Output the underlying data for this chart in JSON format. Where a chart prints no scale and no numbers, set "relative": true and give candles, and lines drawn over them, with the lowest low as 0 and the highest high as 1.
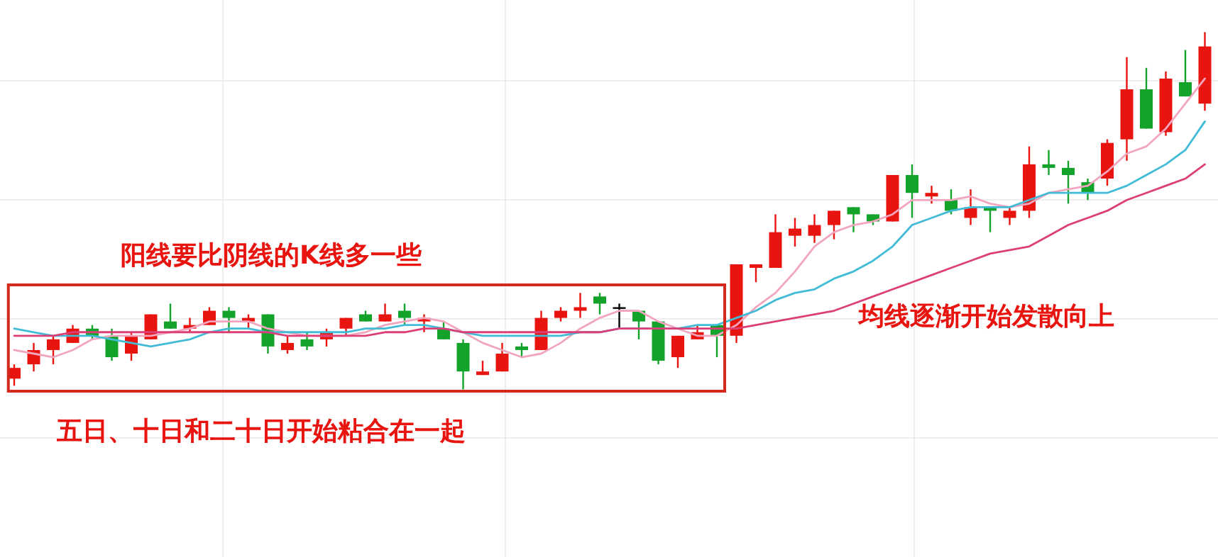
{
  "chart_data": {
    "type": "candlestick",
    "relative": true,
    "grid": true,
    "categories": [
      null,
      null,
      null,
      null,
      null,
      null,
      null,
      null,
      null,
      null,
      null,
      null,
      null,
      null,
      null,
      null,
      null,
      null,
      null,
      null,
      null,
      null,
      null,
      null,
      null,
      null,
      null,
      null,
      null,
      null,
      null,
      null,
      null,
      null,
      null,
      null,
      null,
      null,
      null,
      null,
      null,
      null,
      null,
      null,
      null,
      null,
      null,
      null,
      null,
      null,
      null,
      null,
      null,
      null,
      null,
      null,
      null,
      null,
      null,
      null,
      null,
      null
    ],
    "ohlc": [
      [
        0.03,
        0.07,
        0.01,
        0.06
      ],
      [
        0.07,
        0.13,
        0.05,
        0.11
      ],
      [
        0.11,
        0.15,
        0.07,
        0.14
      ],
      [
        0.13,
        0.18,
        0.13,
        0.17
      ],
      [
        0.17,
        0.18,
        0.14,
        0.15
      ],
      [
        0.15,
        0.17,
        0.08,
        0.09
      ],
      [
        0.1,
        0.16,
        0.08,
        0.15
      ],
      [
        0.14,
        0.21,
        0.14,
        0.21
      ],
      [
        0.19,
        0.24,
        0.17,
        0.17
      ],
      [
        0.17,
        0.2,
        0.16,
        0.18
      ],
      [
        0.18,
        0.23,
        0.18,
        0.22
      ],
      [
        0.22,
        0.23,
        0.16,
        0.2
      ],
      [
        0.19,
        0.21,
        0.17,
        0.2
      ],
      [
        0.21,
        0.21,
        0.1,
        0.12
      ],
      [
        0.11,
        0.15,
        0.1,
        0.13
      ],
      [
        0.14,
        0.16,
        0.11,
        0.12
      ],
      [
        0.14,
        0.17,
        0.12,
        0.16
      ],
      [
        0.17,
        0.2,
        0.15,
        0.2
      ],
      [
        0.21,
        0.22,
        0.19,
        0.19
      ],
      [
        0.19,
        0.24,
        0.19,
        0.21
      ],
      [
        0.22,
        0.24,
        0.18,
        0.2
      ],
      [
        0.19,
        0.21,
        0.16,
        0.2
      ],
      [
        0.17,
        0.19,
        0.14,
        0.14
      ],
      [
        0.13,
        0.14,
        0,
        0.05
      ],
      [
        0.04,
        0.08,
        0.04,
        0.05
      ],
      [
        0.05,
        0.13,
        0.05,
        0.1
      ],
      [
        0.12,
        0.13,
        0.09,
        0.11
      ],
      [
        0.11,
        0.22,
        0.11,
        0.2
      ],
      [
        0.2,
        0.23,
        0.19,
        0.22
      ],
      [
        0.22,
        0.27,
        0.2,
        0.23
      ],
      [
        0.26,
        0.27,
        0.21,
        0.24
      ],
      [
        0.23,
        0.24,
        0.17,
        0.23
      ],
      [
        0.22,
        0.22,
        0.14,
        0.19
      ],
      [
        0.19,
        0.19,
        0.07,
        0.08
      ],
      [
        0.09,
        0.15,
        0.06,
        0.15
      ],
      [
        0.14,
        0.18,
        0.14,
        0.16
      ],
      [
        0.18,
        0.18,
        0.09,
        0.15
      ],
      [
        0.15,
        0.35,
        0.13,
        0.35
      ],
      [
        0.34,
        0.35,
        0.3,
        0.35
      ],
      [
        0.34,
        0.49,
        0.34,
        0.44
      ],
      [
        0.43,
        0.48,
        0.4,
        0.45
      ],
      [
        0.43,
        0.49,
        0.41,
        0.46
      ],
      [
        0.46,
        0.5,
        0.42,
        0.5
      ],
      [
        0.51,
        0.51,
        0.44,
        0.49
      ],
      [
        0.49,
        0.49,
        0.46,
        0.47
      ],
      [
        0.47,
        0.6,
        0.47,
        0.6
      ],
      [
        0.6,
        0.63,
        0.48,
        0.55
      ],
      [
        0.54,
        0.57,
        0.52,
        0.55
      ],
      [
        0.53,
        0.56,
        0.49,
        0.5
      ],
      [
        0.48,
        0.56,
        0.46,
        0.51
      ],
      [
        0.51,
        0.51,
        0.44,
        0.5
      ],
      [
        0.48,
        0.51,
        0.46,
        0.5
      ],
      [
        0.5,
        0.68,
        0.48,
        0.63
      ],
      [
        0.63,
        0.67,
        0.6,
        0.62
      ],
      [
        0.62,
        0.64,
        0.52,
        0.6
      ],
      [
        0.58,
        0.59,
        0.53,
        0.55
      ],
      [
        0.59,
        0.7,
        0.57,
        0.69
      ],
      [
        0.7,
        0.93,
        0.64,
        0.84
      ],
      [
        0.84,
        0.9,
        0.73,
        0.73
      ],
      [
        0.72,
        0.89,
        0.71,
        0.87
      ],
      [
        0.86,
        0.95,
        0.82,
        0.82
      ],
      [
        0.8,
        1,
        0.78,
        0.96
      ]
    ],
    "colors": [
      "#e8140f",
      "#e8140f",
      "#e8140f",
      "#e8140f",
      "#13a32b",
      "#13a32b",
      "#e8140f",
      "#e8140f",
      "#13a32b",
      "#e8140f",
      "#e8140f",
      "#13a32b",
      "#e8140f",
      "#13a32b",
      "#e8140f",
      "#13a32b",
      "#e8140f",
      "#e8140f",
      "#13a32b",
      "#e8140f",
      "#13a32b",
      "#e8140f",
      "#13a32b",
      "#13a32b",
      "#e8140f",
      "#e8140f",
      "#13a32b",
      "#e8140f",
      "#e8140f",
      "#e8140f",
      "#13a32b",
      "#000000",
      "#13a32b",
      "#13a32b",
      "#e8140f",
      "#e8140f",
      "#13a32b",
      "#e8140f",
      "#e8140f",
      "#e8140f",
      "#e8140f",
      "#e8140f",
      "#e8140f",
      "#13a32b",
      "#13a32b",
      "#e8140f",
      "#13a32b",
      "#e8140f",
      "#13a32b",
      "#e8140f",
      "#13a32b",
      "#e8140f",
      "#e8140f",
      "#13a32b",
      "#13a32b",
      "#13a32b",
      "#e8140f",
      "#e8140f",
      "#13a32b",
      "#e8140f",
      "#13a32b",
      "#e8140f"
    ],
    "series": [
      {
        "type": "line",
        "color": "#f2a5be",
        "values": [
          0.11,
          0.1,
          0.09,
          0.11,
          0.14,
          0.15,
          0.15,
          0.15,
          0.16,
          0.17,
          0.19,
          0.19,
          0.19,
          0.17,
          0.16,
          0.15,
          0.15,
          0.15,
          0.16,
          0.18,
          0.19,
          0.2,
          0.19,
          0.16,
          0.13,
          0.11,
          0.09,
          0.1,
          0.13,
          0.17,
          0.2,
          0.22,
          0.22,
          0.19,
          0.17,
          0.15,
          0.15,
          0.18,
          0.23,
          0.27,
          0.33,
          0.4,
          0.44,
          0.46,
          0.47,
          0.49,
          0.53,
          0.53,
          0.53,
          0.54,
          0.52,
          0.51,
          0.52,
          0.55,
          0.56,
          0.57,
          0.61,
          0.66,
          0.68,
          0.73,
          0.8,
          0.87
        ]
      },
      {
        "type": "line",
        "color": "#42bcd6",
        "values": [
          0.17,
          0.16,
          0.15,
          0.15,
          0.15,
          0.14,
          0.13,
          0.12,
          0.13,
          0.14,
          0.16,
          0.17,
          0.17,
          0.16,
          0.16,
          0.16,
          0.16,
          0.16,
          0.17,
          0.17,
          0.18,
          0.18,
          0.17,
          0.16,
          0.15,
          0.15,
          0.15,
          0.15,
          0.15,
          0.16,
          0.16,
          0.17,
          0.17,
          0.17,
          0.17,
          0.18,
          0.18,
          0.2,
          0.22,
          0.25,
          0.27,
          0.28,
          0.31,
          0.33,
          0.36,
          0.4,
          0.46,
          0.48,
          0.5,
          0.51,
          0.51,
          0.51,
          0.53,
          0.55,
          0.55,
          0.55,
          0.55,
          0.57,
          0.6,
          0.63,
          0.67,
          0.75
        ]
      },
      {
        "type": "line",
        "color": "#dc3f78",
        "values": [
          0.15,
          0.15,
          0.15,
          0.16,
          0.16,
          0.16,
          0.16,
          0.16,
          0.16,
          0.16,
          0.16,
          0.16,
          0.16,
          0.16,
          0.15,
          0.15,
          0.15,
          0.15,
          0.15,
          0.16,
          0.16,
          0.17,
          0.17,
          0.16,
          0.16,
          0.16,
          0.16,
          0.16,
          0.16,
          0.16,
          0.16,
          0.17,
          0.17,
          0.17,
          0.17,
          0.17,
          0.17,
          0.17,
          0.18,
          0.19,
          0.2,
          0.21,
          0.22,
          0.24,
          0.26,
          0.28,
          0.3,
          0.32,
          0.34,
          0.36,
          0.38,
          0.39,
          0.4,
          0.43,
          0.46,
          0.48,
          0.5,
          0.53,
          0.55,
          0.57,
          0.59,
          0.63
        ]
      }
    ],
    "annotations": [
      "阳线要比阴线的K线多一些",
      "五日、十日和二十日开始粘合在一起",
      "均线逐渐开始发散向上"
    ]
  }
}
